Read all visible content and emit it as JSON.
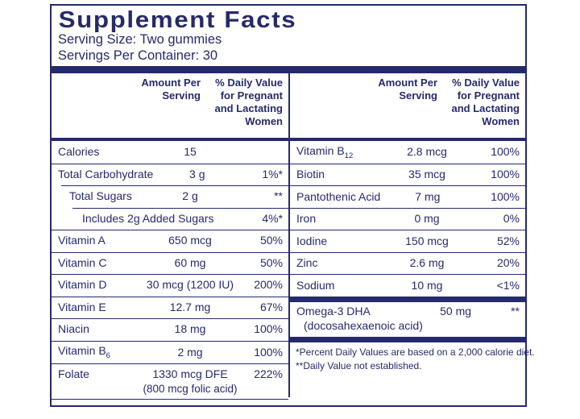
{
  "panel": {
    "title": "Supplement Facts",
    "serving_size": "Serving Size: Two gummies",
    "servings_per_container": "Servings Per Container: 30",
    "colors": {
      "navy": "#262a6b",
      "background": "#ffffff"
    }
  },
  "header": {
    "amount_line1": "Amount Per",
    "amount_line2": "Serving",
    "dv_line1": "% Daily Value",
    "dv_line2": "for Pregnant",
    "dv_line3": "and Lactating",
    "dv_line4": "Women"
  },
  "table_left": {
    "rows": [
      {
        "label": "Calories",
        "amount": "15",
        "dv": ""
      },
      {
        "label": "Total Carbohydrate",
        "amount": "3 g",
        "dv": "1%*"
      },
      {
        "label": "Total Sugars",
        "amount": "2 g",
        "dv": "**"
      },
      {
        "label": "Includes 2g Added Sugars",
        "amount": "",
        "dv": "4%*"
      },
      {
        "label": "Vitamin A",
        "amount": "650 mcg",
        "dv": "50%"
      },
      {
        "label": "Vitamin C",
        "amount": "60 mg",
        "dv": "50%"
      },
      {
        "label": "Vitamin D",
        "amount": "30 mcg (1200 IU)",
        "dv": "200%"
      },
      {
        "label": "Vitamin E",
        "amount": "12.7 mg",
        "dv": "67%"
      },
      {
        "label": "Niacin",
        "amount": "18 mg",
        "dv": "100%"
      },
      {
        "label": "Vitamin B",
        "label_sub": "6",
        "amount": "2 mg",
        "dv": "100%"
      },
      {
        "label": "Folate",
        "amount": "1330 mcg DFE",
        "amount_line2": "(800 mcg folic acid)",
        "dv": "222%"
      }
    ]
  },
  "table_right": {
    "rows": [
      {
        "label": "Vitamin B",
        "label_sub": "12",
        "amount": "2.8 mcg",
        "dv": "100%"
      },
      {
        "label": "Biotin",
        "amount": "35 mcg",
        "dv": "100%"
      },
      {
        "label": "Pantothenic Acid",
        "amount": "7 mg",
        "dv": "100%"
      },
      {
        "label": "Iron",
        "amount": "0 mg",
        "dv": "0%"
      },
      {
        "label": "Iodine",
        "amount": "150 mcg",
        "dv": "52%"
      },
      {
        "label": "Zinc",
        "amount": "2.6 mg",
        "dv": "20%"
      },
      {
        "label": "Sodium",
        "amount": "10 mg",
        "dv": "<1%"
      },
      {
        "label": "Omega-3 DHA",
        "label_line2": "(docosahexaenoic acid)",
        "amount": "50 mg",
        "dv": "**"
      }
    ],
    "footnotes": [
      "*Percent Daily Values are based on a 2,000 calorie diet.",
      "**Daily Value not established."
    ]
  }
}
